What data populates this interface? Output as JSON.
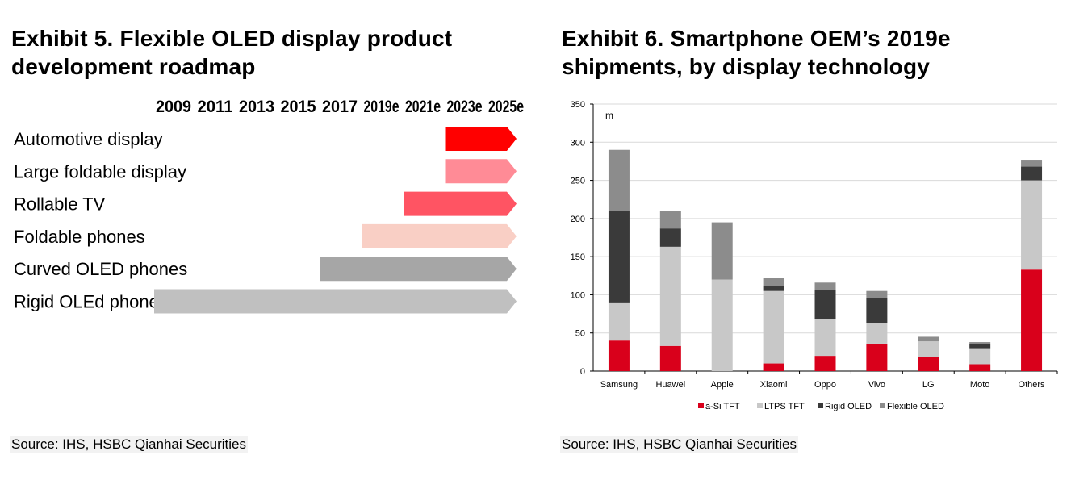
{
  "left": {
    "title": "Exhibit 5. Flexible OLED display product development roadmap",
    "source": "Source: IHS, HSBC Qianhai Securities"
  },
  "right": {
    "title": "Exhibit 6. Smartphone OEM’s 2019e shipments, by display technology",
    "source": "Source: IHS, HSBC Qianhai Securities"
  },
  "chart_data": [
    {
      "type": "bar",
      "orientation": "horizontal-timeline",
      "x_categories": [
        "2009",
        "2011",
        "2013",
        "2015",
        "2017",
        "2019e",
        "2021e",
        "2023e",
        "2025e"
      ],
      "rows": [
        {
          "label": "Automotive display",
          "start": "2023e",
          "end": "2025e",
          "color": "#ff0000"
        },
        {
          "label": "Large foldable display",
          "start": "2023e",
          "end": "2025e",
          "color": "#ff8b96"
        },
        {
          "label": "Rollable TV",
          "start": "2021e",
          "end": "2025e",
          "color": "#ff5463"
        },
        {
          "label": "Foldable phones",
          "start": "2019e",
          "end": "2025e",
          "color": "#f9cfc5"
        },
        {
          "label": "Curved OLED phones",
          "start": "2017",
          "end": "2025e",
          "color": "#a6a6a6"
        },
        {
          "label": "Rigid OLEd phones",
          "start": "2009",
          "end": "2025e",
          "color": "#c0c0c0"
        }
      ]
    },
    {
      "type": "bar",
      "stacked": true,
      "ylabel": "m",
      "ylim": [
        0,
        350
      ],
      "yticks": [
        0,
        50,
        100,
        150,
        200,
        250,
        300,
        350
      ],
      "grid": true,
      "legend_position": "bottom",
      "categories": [
        "Samsung",
        "Huawei",
        "Apple",
        "Xiaomi",
        "Oppo",
        "Vivo",
        "LG",
        "Moto",
        "Others"
      ],
      "series": [
        {
          "name": "a-Si TFT",
          "color": "#d9001b",
          "values": [
            40,
            33,
            0,
            10,
            20,
            36,
            19,
            9,
            133
          ]
        },
        {
          "name": "LTPS TFT",
          "color": "#c8c8c8",
          "values": [
            50,
            130,
            120,
            95,
            48,
            27,
            20,
            21,
            117
          ]
        },
        {
          "name": "Rigid OLED",
          "color": "#3a3a3a",
          "values": [
            120,
            24,
            0,
            7,
            38,
            33,
            0,
            5,
            18
          ]
        },
        {
          "name": "Flexible OLED",
          "color": "#8c8c8c",
          "values": [
            80,
            23,
            75,
            10,
            10,
            9,
            6,
            3,
            9
          ]
        }
      ]
    }
  ]
}
